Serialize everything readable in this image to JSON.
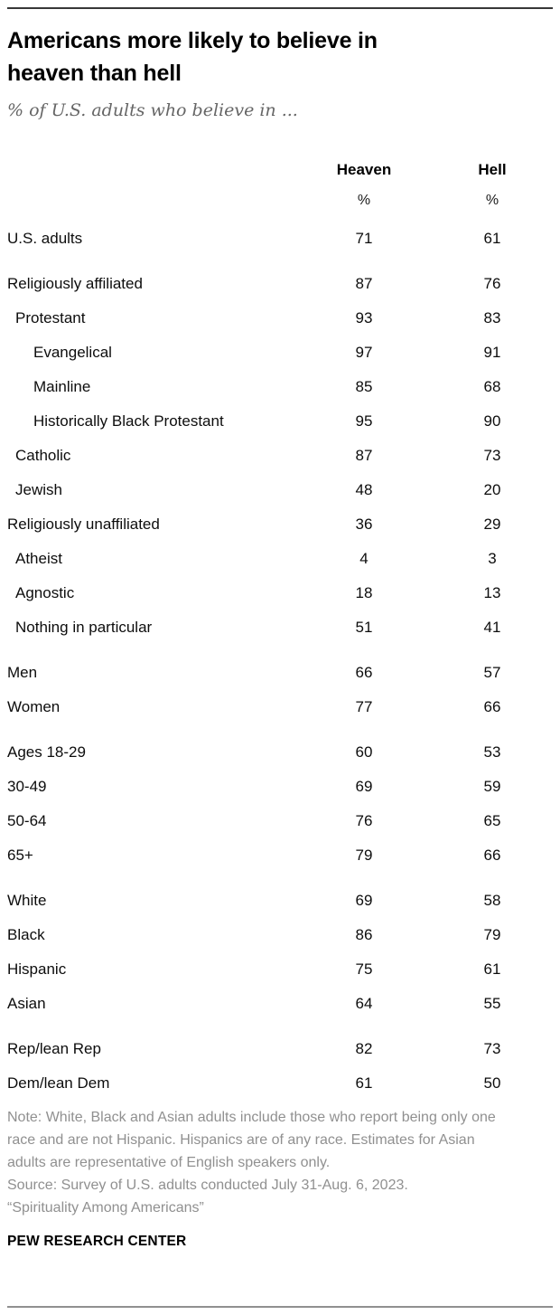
{
  "header": {
    "title_lines": [
      "Americans more likely to believe in",
      "heaven than hell"
    ],
    "subtitle": "% of U.S. adults who believe in ..."
  },
  "chart_data": {
    "type": "table",
    "title": "Americans more likely to believe in heaven than hell",
    "subtitle": "% of U.S. adults who believe in ...",
    "columns": [
      "Heaven",
      "Hell"
    ],
    "unit": "%",
    "rows": [
      {
        "label": "U.S. adults",
        "indent": 0,
        "heaven": "71",
        "hell": "61",
        "gap_before": false
      },
      {
        "label": "Religiously affiliated",
        "indent": 0,
        "heaven": "87",
        "hell": "76",
        "gap_before": true
      },
      {
        "label": "Protestant",
        "indent": 1,
        "heaven": "93",
        "hell": "83",
        "gap_before": false
      },
      {
        "label": "Evangelical",
        "indent": 2,
        "heaven": "97",
        "hell": "91",
        "gap_before": false
      },
      {
        "label": "Mainline",
        "indent": 2,
        "heaven": "85",
        "hell": "68",
        "gap_before": false
      },
      {
        "label": "Historically Black Protestant",
        "indent": 2,
        "heaven": "95",
        "hell": "90",
        "gap_before": false
      },
      {
        "label": "Catholic",
        "indent": 1,
        "heaven": "87",
        "hell": "73",
        "gap_before": false
      },
      {
        "label": "Jewish",
        "indent": 1,
        "heaven": "48",
        "hell": "20",
        "gap_before": false
      },
      {
        "label": "Religiously unaffiliated",
        "indent": 0,
        "heaven": "36",
        "hell": "29",
        "gap_before": false
      },
      {
        "label": "Atheist",
        "indent": 1,
        "heaven": "4",
        "hell": "3",
        "gap_before": false
      },
      {
        "label": "Agnostic",
        "indent": 1,
        "heaven": "18",
        "hell": "13",
        "gap_before": false
      },
      {
        "label": "Nothing in particular",
        "indent": 1,
        "heaven": "51",
        "hell": "41",
        "gap_before": false
      },
      {
        "label": "Men",
        "indent": 0,
        "heaven": "66",
        "hell": "57",
        "gap_before": true
      },
      {
        "label": "Women",
        "indent": 0,
        "heaven": "77",
        "hell": "66",
        "gap_before": false
      },
      {
        "label": "Ages 18-29",
        "indent": 0,
        "heaven": "60",
        "hell": "53",
        "gap_before": true
      },
      {
        "label": "30-49",
        "indent": 0,
        "heaven": "69",
        "hell": "59",
        "gap_before": false
      },
      {
        "label": "50-64",
        "indent": 0,
        "heaven": "76",
        "hell": "65",
        "gap_before": false
      },
      {
        "label": "65+",
        "indent": 0,
        "heaven": "79",
        "hell": "66",
        "gap_before": false
      },
      {
        "label": "White",
        "indent": 0,
        "heaven": "69",
        "hell": "58",
        "gap_before": true
      },
      {
        "label": "Black",
        "indent": 0,
        "heaven": "86",
        "hell": "79",
        "gap_before": false
      },
      {
        "label": "Hispanic",
        "indent": 0,
        "heaven": "75",
        "hell": "61",
        "gap_before": false
      },
      {
        "label": "Asian",
        "indent": 0,
        "heaven": "64",
        "hell": "55",
        "gap_before": false
      },
      {
        "label": "Rep/lean Rep",
        "indent": 0,
        "heaven": "82",
        "hell": "73",
        "gap_before": true
      },
      {
        "label": "Dem/lean Dem",
        "indent": 0,
        "heaven": "61",
        "hell": "50",
        "gap_before": false
      }
    ]
  },
  "footer": {
    "note": "Note: White, Black and Asian adults include those who report being only one race and are not Hispanic. Hispanics are of any race. Estimates for Asian adults are representative of English speakers only.",
    "source": "Source: Survey of U.S. adults conducted July 31-Aug. 6, 2023.",
    "source_quote": "“Spirituality Among Americans”",
    "brand": "PEW RESEARCH CENTER"
  }
}
